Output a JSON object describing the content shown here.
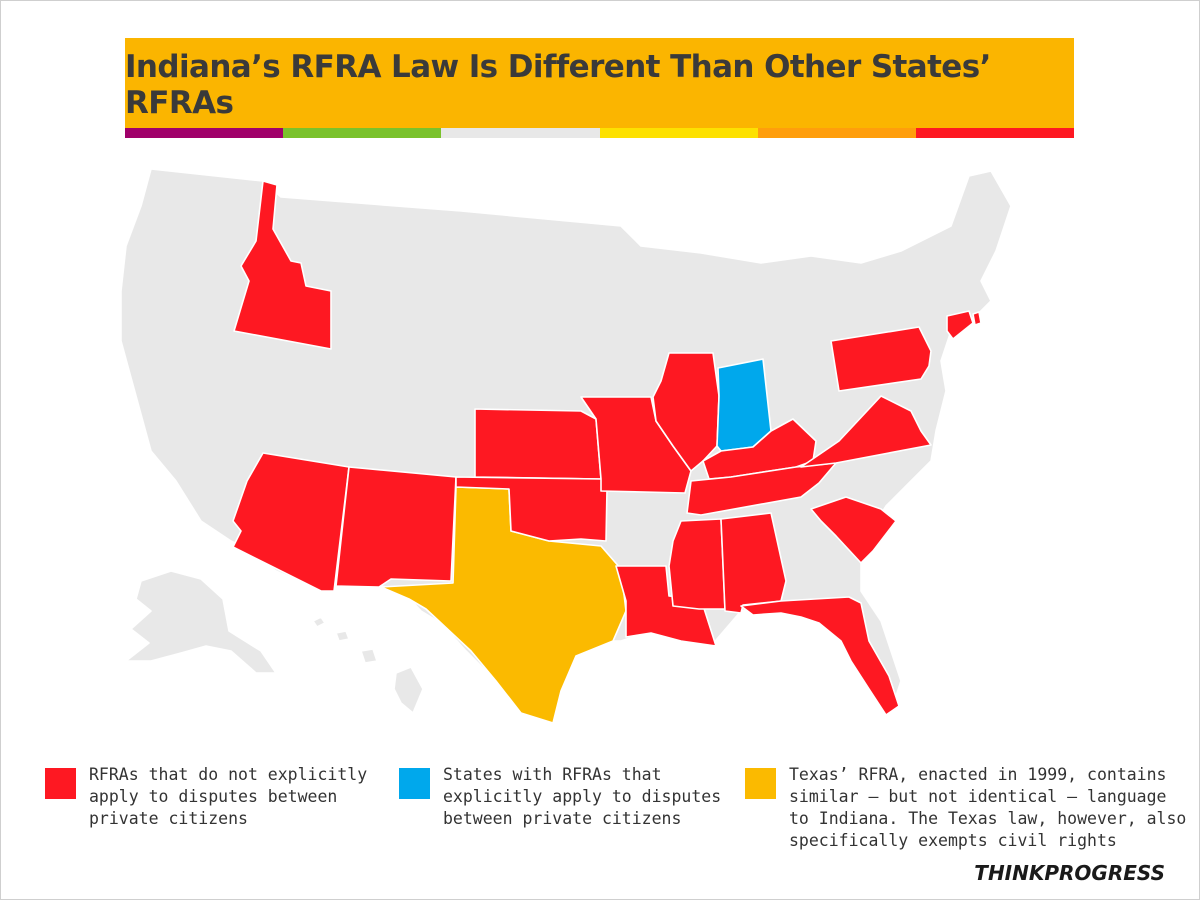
{
  "title": "Indiana’s RFRA Law Is Different Than Other States’ RFRAs",
  "colors": {
    "title_background": "#fbb500",
    "title_text": "#3a3a3a",
    "default_state": "#e8e8e8",
    "rfra_red": "#fe1822",
    "indiana_blue": "#00a8ec",
    "texas_yellow": "#fbba00",
    "stripe": [
      "#a0006a",
      "#7ac22c",
      "#e8e8e8",
      "#fde100",
      "#ff9e0c",
      "#fe1822"
    ]
  },
  "map": {
    "state_categories": {
      "rfra_no_private_disputes": [
        "Idaho",
        "Arizona",
        "New Mexico",
        "Kansas",
        "Oklahoma",
        "Missouri",
        "Illinois",
        "Kentucky",
        "Tennessee",
        "Virginia",
        "Pennsylvania",
        "Connecticut",
        "Rhode Island",
        "Louisiana",
        "Mississippi",
        "Alabama",
        "Florida",
        "South Carolina"
      ],
      "rfra_private_disputes": [
        "Indiana"
      ],
      "texas_rfra": [
        "Texas"
      ]
    }
  },
  "legend": [
    {
      "color": "#fe1822",
      "text": "RFRAs that do not explicitly\napply to disputes between\nprivate citizens"
    },
    {
      "color": "#00a8ec",
      "text": "States with RFRAs that\nexplicitly apply to disputes\nbetween private citizens"
    },
    {
      "color": "#fbba00",
      "text": "Texas’ RFRA, enacted in 1999, contains\nsimilar — but not identical — language\nto Indiana. The Texas law, however, also\nspecifically exempts civil rights"
    }
  ],
  "brand": "THINKPROGRESS"
}
